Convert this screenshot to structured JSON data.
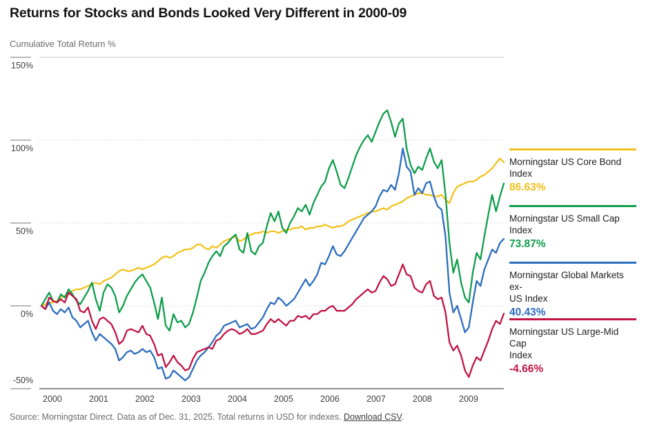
{
  "header": {
    "title": "Returns for Stocks and Bonds Looked Very Different in 2000-09",
    "subtitle": "Cumulative Total Return %"
  },
  "chart_data": {
    "type": "line",
    "title": "Returns for Stocks and Bonds Looked Very Different in 2000-09",
    "ylabel": "Cumulative Total Return %",
    "ylim": [
      -50,
      150
    ],
    "x_range": [
      "Jan 2000",
      "Dec 2009"
    ],
    "points_per_series": 120,
    "grid": {
      "solid_top_value": 150,
      "dotted_values": [
        100,
        50,
        0
      ],
      "axis_value": -50
    },
    "yticks": [
      {
        "label": "150%",
        "value": 150
      },
      {
        "label": "100%",
        "value": 100
      },
      {
        "label": "50%",
        "value": 50
      },
      {
        "label": "0%",
        "value": 0
      },
      {
        "label": "-50%",
        "value": -50
      }
    ],
    "xticks": [
      "2000",
      "2001",
      "2002",
      "2003",
      "2004",
      "2005",
      "2006",
      "2007",
      "2008",
      "2009"
    ],
    "series": [
      {
        "id": "core-bond",
        "name": "Morningstar US Core Bond Index",
        "name_lines": [
          "Morningstar US Core Bond",
          "Index"
        ],
        "color": "#F1C21B",
        "final_label": "86.63%",
        "values": [
          0,
          1,
          2,
          2,
          3,
          5,
          6,
          7,
          9,
          10,
          10,
          11,
          12,
          13,
          14,
          13,
          15,
          16,
          17,
          19,
          21,
          22,
          21,
          21,
          22,
          23,
          22,
          23,
          24,
          25,
          27,
          29,
          30,
          29,
          30,
          32,
          33,
          34,
          34,
          35,
          37,
          37,
          35,
          34,
          36,
          35,
          37,
          39,
          40,
          41,
          42,
          39,
          40,
          42,
          43,
          44,
          44,
          45,
          44,
          45,
          45,
          44,
          45,
          46,
          46,
          47,
          47,
          48,
          46,
          47,
          47,
          48,
          48,
          49,
          48,
          47,
          48,
          48,
          49,
          51,
          52,
          53,
          54,
          55,
          56,
          57,
          57,
          58,
          59,
          58,
          60,
          61,
          62,
          63,
          65,
          66,
          67,
          68,
          68,
          67,
          67,
          66,
          66,
          67,
          64,
          62,
          68,
          72,
          73,
          74,
          75,
          75,
          76,
          78,
          79,
          81,
          83,
          86,
          89,
          86.63
        ]
      },
      {
        "id": "small-cap",
        "name": "Morningstar US Small Cap Index",
        "name_lines": [
          "Morningstar US Small Cap",
          "Index"
        ],
        "color": "#0E9D49",
        "final_label": "73.87%",
        "values": [
          0,
          4,
          8,
          3,
          2,
          7,
          5,
          10,
          7,
          3,
          1,
          5,
          9,
          14,
          4,
          -3,
          8,
          13,
          11,
          6,
          -4,
          0,
          6,
          10,
          14,
          17,
          19,
          15,
          11,
          2,
          -8,
          5,
          -12,
          -15,
          -5,
          -10,
          -9,
          -13,
          -11,
          -4,
          5,
          15,
          20,
          26,
          30,
          33,
          30,
          36,
          38,
          41,
          43,
          34,
          32,
          44,
          33,
          31,
          36,
          38,
          48,
          56,
          51,
          57,
          47,
          44,
          50,
          54,
          59,
          57,
          61,
          55,
          62,
          67,
          72,
          75,
          83,
          88,
          81,
          73,
          71,
          77,
          84,
          91,
          96,
          100,
          103,
          99,
          105,
          111,
          116,
          118,
          111,
          102,
          110,
          113,
          95,
          85,
          80,
          84,
          82,
          89,
          95,
          87,
          83,
          88,
          67,
          38,
          20,
          28,
          14,
          5,
          2,
          20,
          32,
          28,
          42,
          55,
          67,
          57,
          66,
          73.87
        ]
      },
      {
        "id": "global-ex-us",
        "name": "Morningstar Global Markets ex-US Index",
        "name_lines": [
          "Morningstar Global Markets ex-",
          "US Index"
        ],
        "color": "#2B6CBE",
        "final_label": "40.43%",
        "values": [
          0,
          -2,
          2,
          -3,
          -5,
          -2,
          -4,
          -1,
          -7,
          -9,
          -13,
          -11,
          -9,
          -16,
          -21,
          -17,
          -19,
          -21,
          -23,
          -26,
          -33,
          -31,
          -28,
          -27,
          -29,
          -28,
          -26,
          -28,
          -27,
          -31,
          -38,
          -37,
          -44,
          -43,
          -39,
          -41,
          -43,
          -45,
          -43,
          -38,
          -33,
          -30,
          -28,
          -25,
          -22,
          -18,
          -16,
          -12,
          -11,
          -10,
          -9,
          -13,
          -12,
          -11,
          -14,
          -13,
          -10,
          -7,
          -2,
          2,
          1,
          5,
          3,
          0,
          2,
          4,
          8,
          12,
          16,
          12,
          15,
          19,
          26,
          25,
          30,
          36,
          31,
          30,
          33,
          37,
          41,
          45,
          49,
          53,
          55,
          57,
          60,
          66,
          70,
          69,
          73,
          70,
          80,
          95,
          84,
          81,
          67,
          71,
          68,
          74,
          75,
          66,
          60,
          58,
          42,
          8,
          -4,
          0,
          -8,
          -16,
          -13,
          2,
          15,
          12,
          22,
          28,
          34,
          32,
          38,
          40.43
        ]
      },
      {
        "id": "large-mid-cap",
        "name": "Morningstar US Large-Mid Cap Index",
        "name_lines": [
          "Morningstar US Large-Mid Cap",
          "Index"
        ],
        "color": "#C01342",
        "final_label": "-4.66%",
        "values": [
          0,
          -2,
          5,
          3,
          2,
          4,
          2,
          8,
          6,
          4,
          -3,
          -4,
          -1,
          -9,
          -14,
          -8,
          -7,
          -9,
          -11,
          -16,
          -23,
          -21,
          -15,
          -14,
          -15,
          -16,
          -12,
          -17,
          -18,
          -23,
          -30,
          -29,
          -37,
          -34,
          -30,
          -34,
          -36,
          -39,
          -38,
          -32,
          -28,
          -27,
          -26,
          -25,
          -26,
          -21,
          -20,
          -17,
          -15,
          -14,
          -15,
          -17,
          -16,
          -14,
          -17,
          -17,
          -16,
          -15,
          -11,
          -8,
          -10,
          -8,
          -10,
          -12,
          -9,
          -9,
          -6,
          -7,
          -6,
          -8,
          -5,
          -5,
          -3,
          -3,
          -1,
          0,
          -3,
          -3,
          -3,
          -1,
          1,
          4,
          6,
          8,
          10,
          8,
          9,
          14,
          18,
          16,
          12,
          13,
          19,
          25,
          19,
          18,
          11,
          9,
          8,
          13,
          15,
          6,
          4,
          5,
          -4,
          -22,
          -27,
          -24,
          -30,
          -39,
          -43,
          -36,
          -31,
          -33,
          -27,
          -21,
          -14,
          -9,
          -11,
          -4.66
        ]
      }
    ],
    "legend_position": "right"
  },
  "footer": {
    "source_text": "Source: Morningstar Direct. Data as of Dec. 31, 2025. Total returns in USD for indexes. ",
    "link_label": "Download CSV",
    "after_link": "."
  }
}
